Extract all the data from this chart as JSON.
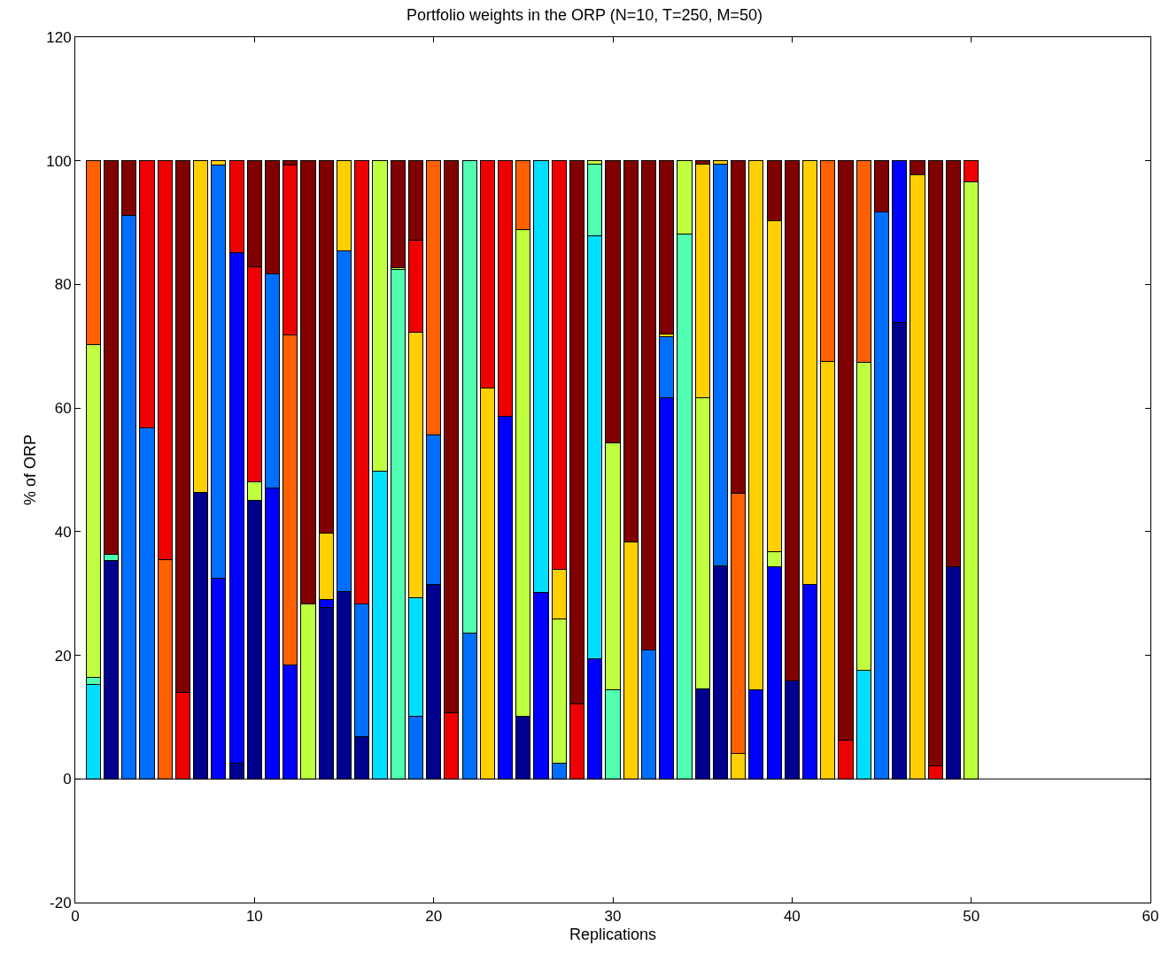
{
  "chart_data": {
    "type": "bar",
    "stacked": true,
    "title": "Portfolio weights in the ORP (N=10, T=250, M=50)",
    "xlabel": "Replications",
    "ylabel": "% of ORP",
    "x": [
      1,
      2,
      3,
      4,
      5,
      6,
      7,
      8,
      9,
      10,
      11,
      12,
      13,
      14,
      15,
      16,
      17,
      18,
      19,
      20,
      21,
      22,
      23,
      24,
      25,
      26,
      27,
      28,
      29,
      30,
      31,
      32,
      33,
      34,
      35,
      36,
      37,
      38,
      39,
      40,
      41,
      42,
      43,
      44,
      45,
      46,
      47,
      48,
      49,
      50
    ],
    "xlim": [
      0,
      60
    ],
    "xticks": [
      0,
      10,
      20,
      30,
      40,
      50,
      60
    ],
    "ylim": [
      -20,
      120
    ],
    "yticks": [
      -20,
      0,
      20,
      40,
      60,
      80,
      100,
      120
    ],
    "ref_lines": [
      {
        "axis": "y",
        "value": 0,
        "color": "#000000"
      }
    ],
    "series": [
      {
        "color": "#00008f",
        "values": [
          null,
          35.3,
          null,
          null,
          null,
          null,
          46.3,
          null,
          2.6,
          45,
          null,
          null,
          null,
          27.7,
          30.3,
          6.9,
          null,
          null,
          null,
          31.4,
          null,
          null,
          null,
          null,
          10.1,
          null,
          null,
          null,
          null,
          null,
          null,
          null,
          null,
          null,
          14.6,
          34.5,
          null,
          null,
          null,
          15.9,
          null,
          null,
          null,
          null,
          null,
          73.8,
          null,
          null,
          34.3,
          null
        ]
      },
      {
        "color": "#0000ff",
        "values": [
          null,
          null,
          null,
          null,
          null,
          null,
          null,
          32.4,
          82.6,
          null,
          47,
          18.4,
          null,
          1.4,
          null,
          null,
          null,
          null,
          null,
          null,
          null,
          null,
          null,
          58.6,
          null,
          30.2,
          null,
          null,
          19.5,
          null,
          null,
          null,
          61.7,
          null,
          null,
          null,
          null,
          14.4,
          34.3,
          null,
          31.5,
          null,
          null,
          null,
          null,
          26.2,
          null,
          null,
          null,
          null
        ]
      },
      {
        "color": "#006fff",
        "values": [
          null,
          null,
          91.1,
          56.8,
          null,
          null,
          null,
          66.9,
          null,
          null,
          34.7,
          null,
          null,
          null,
          55.2,
          21.4,
          null,
          null,
          10.1,
          24.2,
          null,
          23.6,
          null,
          null,
          null,
          null,
          2.5,
          null,
          null,
          null,
          null,
          20.8,
          9.8,
          null,
          null,
          64.9,
          null,
          null,
          null,
          null,
          null,
          null,
          null,
          null,
          91.7,
          null,
          null,
          null,
          null,
          null
        ]
      },
      {
        "color": "#00dfff",
        "values": [
          15.3,
          null,
          null,
          null,
          null,
          null,
          null,
          null,
          null,
          null,
          null,
          null,
          null,
          null,
          null,
          null,
          49.8,
          null,
          19.2,
          null,
          null,
          null,
          null,
          null,
          null,
          69.8,
          null,
          null,
          68.3,
          null,
          null,
          null,
          null,
          null,
          null,
          null,
          null,
          null,
          null,
          null,
          null,
          null,
          null,
          17.6,
          null,
          null,
          null,
          null,
          null,
          null
        ]
      },
      {
        "color": "#50ffaf",
        "values": [
          1.2,
          1.1,
          null,
          null,
          null,
          null,
          null,
          null,
          null,
          null,
          null,
          null,
          null,
          null,
          null,
          null,
          null,
          82.4,
          null,
          null,
          null,
          76.4,
          null,
          null,
          null,
          null,
          null,
          null,
          11.6,
          14.4,
          null,
          null,
          null,
          88.1,
          null,
          null,
          null,
          null,
          null,
          null,
          null,
          null,
          null,
          null,
          null,
          null,
          null,
          null,
          null,
          null
        ]
      },
      {
        "color": "#bfff3f",
        "values": [
          53.7,
          null,
          null,
          null,
          null,
          null,
          null,
          null,
          null,
          3,
          null,
          null,
          28.3,
          null,
          null,
          null,
          50.2,
          0.3,
          null,
          null,
          null,
          null,
          null,
          null,
          78.8,
          null,
          23.4,
          null,
          0.6,
          40,
          null,
          null,
          null,
          11.9,
          47,
          null,
          null,
          null,
          2.5,
          null,
          null,
          null,
          null,
          49.8,
          null,
          null,
          null,
          null,
          null,
          96.6
        ]
      },
      {
        "color": "#ffcf00",
        "values": [
          null,
          null,
          null,
          null,
          null,
          null,
          53.7,
          0.7,
          null,
          null,
          null,
          null,
          null,
          10.6,
          14.5,
          null,
          null,
          null,
          43,
          null,
          null,
          null,
          63.3,
          null,
          null,
          null,
          8,
          null,
          null,
          null,
          38.3,
          null,
          0.5,
          null,
          37.9,
          0.6,
          4.1,
          85.6,
          53.5,
          null,
          68.5,
          67.6,
          null,
          null,
          null,
          null,
          97.7,
          null,
          null,
          null
        ]
      },
      {
        "color": "#ff6000",
        "values": [
          29.8,
          null,
          null,
          null,
          35.5,
          null,
          null,
          null,
          null,
          null,
          null,
          53.4,
          null,
          null,
          null,
          null,
          null,
          null,
          null,
          44.4,
          null,
          null,
          null,
          null,
          11.1,
          null,
          null,
          null,
          null,
          null,
          null,
          null,
          null,
          null,
          null,
          null,
          42.1,
          null,
          null,
          null,
          null,
          32.4,
          null,
          32.6,
          null,
          null,
          null,
          null,
          null,
          null
        ]
      },
      {
        "color": "#ef0000",
        "values": [
          null,
          null,
          null,
          43.2,
          64.5,
          14,
          null,
          null,
          14.8,
          34.8,
          null,
          27.5,
          null,
          null,
          null,
          71.7,
          null,
          null,
          14.9,
          null,
          10.7,
          null,
          36.7,
          41.4,
          null,
          null,
          66.1,
          12.1,
          null,
          null,
          null,
          null,
          null,
          null,
          null,
          null,
          null,
          null,
          null,
          null,
          null,
          null,
          6.2,
          null,
          null,
          null,
          null,
          2.1,
          null,
          3.4
        ]
      },
      {
        "color": "#800000",
        "values": [
          null,
          63.6,
          8.9,
          null,
          null,
          86,
          null,
          null,
          null,
          17.2,
          18.3,
          0.7,
          71.7,
          60.3,
          null,
          null,
          null,
          17.3,
          12.8,
          null,
          89.3,
          null,
          null,
          null,
          null,
          null,
          null,
          87.9,
          null,
          45.6,
          61.7,
          79.2,
          28,
          null,
          0.5,
          null,
          53.8,
          null,
          9.7,
          84.1,
          null,
          null,
          93.8,
          null,
          8.3,
          null,
          2.3,
          97.9,
          65.7,
          null
        ]
      }
    ]
  }
}
